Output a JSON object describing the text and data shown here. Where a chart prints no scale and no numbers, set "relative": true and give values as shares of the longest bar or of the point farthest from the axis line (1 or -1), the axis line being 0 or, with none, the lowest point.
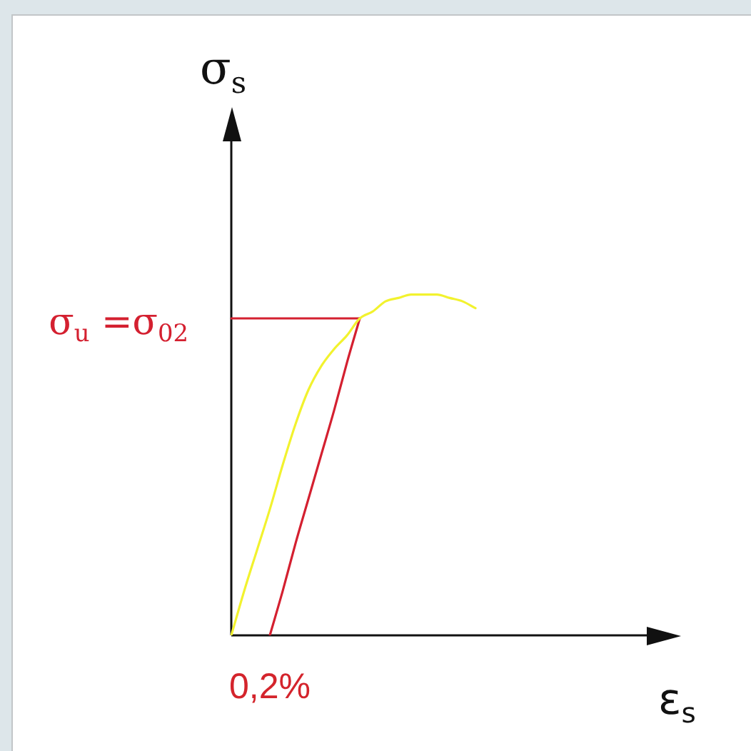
{
  "chart_data": {
    "type": "line",
    "xlabel": "ε$_{s}$",
    "ylabel": "σ$_{s}$",
    "relative": true,
    "categories": [
      null,
      null,
      null,
      null,
      null,
      null,
      null,
      null,
      null,
      null,
      null,
      null,
      null,
      null,
      null,
      null,
      null,
      null,
      null,
      null,
      null,
      null,
      null,
      null,
      null,
      null,
      null,
      null,
      null,
      null,
      null,
      null,
      null,
      null,
      null,
      null
    ],
    "series": [
      {
        "color": "#f2f22e",
        "values": [
          0,
          0.13,
          0.25,
          0.37,
          0.5,
          0.62,
          0.72,
          0.79,
          0.84,
          0.88,
          0.93,
          0.95,
          0.98,
          0.99,
          1,
          1,
          1,
          0.99,
          0.98,
          0.96,
          null,
          null,
          null,
          null,
          null,
          null,
          null,
          null,
          null,
          null,
          null,
          null,
          null,
          null,
          null,
          null
        ]
      },
      {
        "name": "σ$_{u}$ =σ$_{02}$",
        "color": "#d42030",
        "values": [
          0.93,
          0.93,
          0.93,
          0.93,
          0.93,
          0.93,
          0.93,
          0.93,
          0.93,
          0.93,
          0.93,
          null,
          null,
          null,
          null,
          null,
          null,
          null,
          null,
          null,
          null,
          null,
          null,
          null,
          null,
          null,
          null,
          null,
          null,
          null,
          null,
          null,
          null,
          null,
          null,
          null
        ]
      },
      {
        "color": "#d42030",
        "values": [
          null,
          null,
          null,
          0,
          0.13,
          0.27,
          0.4,
          0.53,
          0.66,
          0.8,
          0.93,
          null,
          null,
          null,
          null,
          null,
          null,
          null,
          null,
          null,
          null,
          null,
          null,
          null,
          null,
          null,
          null,
          null,
          null,
          null,
          null,
          null,
          null,
          null,
          null,
          null
        ]
      }
    ],
    "annotations": [
      {
        "text": "0,2%",
        "y": 0
      }
    ],
    "legend": false,
    "marker": "none"
  }
}
